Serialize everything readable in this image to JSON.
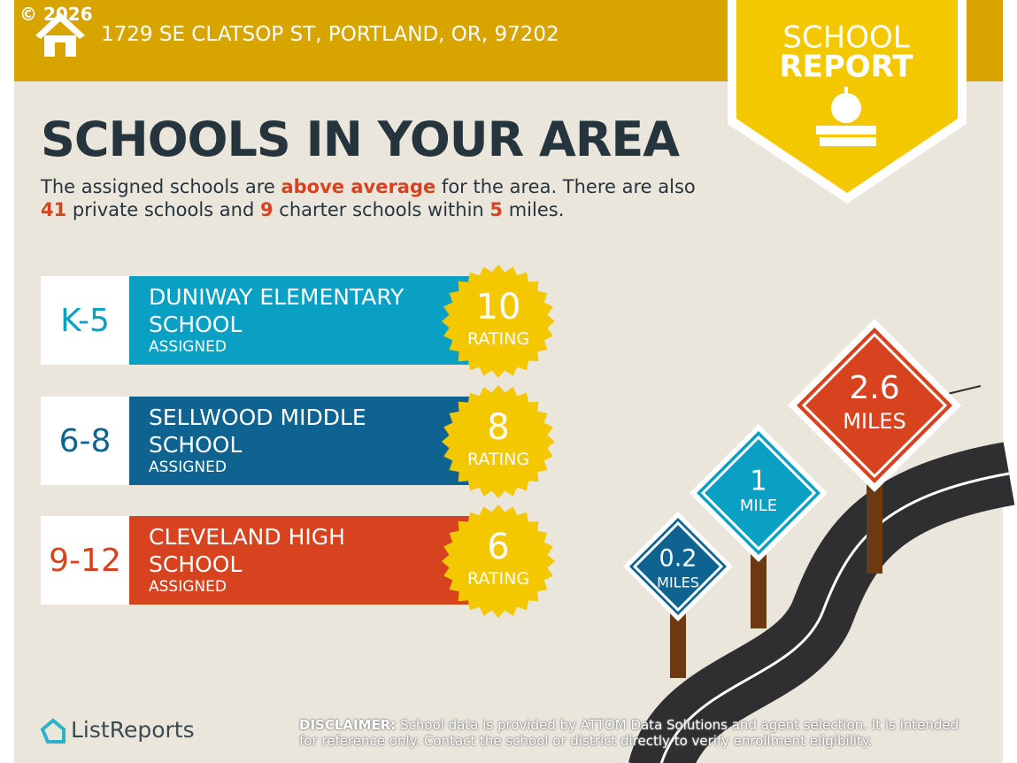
{
  "header": {
    "copyright": "© 2026",
    "address": "1729 SE CLATSOP ST, PORTLAND, OR, 97202"
  },
  "badge": {
    "line1": "SCHOOL",
    "line2": "REPORT"
  },
  "title": "SCHOOLS IN YOUR AREA",
  "intro": [
    "The assigned schools are ",
    "above average",
    " for the area. There are also ",
    "41",
    " private schools and ",
    "9",
    " charter schools within ",
    "5",
    " miles."
  ],
  "schools": [
    {
      "level": "K-5",
      "name": "DUNIWAY ELEMENTARY SCHOOL",
      "status": "ASSIGNED",
      "rating": 10,
      "rating_label": "RATING"
    },
    {
      "level": "6-8",
      "name": "SELLWOOD MIDDLE SCHOOL",
      "status": "ASSIGNED",
      "rating": 8,
      "rating_label": "RATING"
    },
    {
      "level": "9-12",
      "name": "CLEVELAND HIGH SCHOOL",
      "status": "ASSIGNED",
      "rating": 6,
      "rating_label": "RATING"
    }
  ],
  "signs": [
    {
      "distance": "0.2",
      "unit": "MILES"
    },
    {
      "distance": "1",
      "unit": "MILE"
    },
    {
      "distance": "2.6",
      "unit": "MILES"
    }
  ],
  "footer": {
    "brand": "ListReports",
    "disclaimer_label": "DISCLAIMER:",
    "disclaimer": "School data is provided by ATTOM Data Solutions and agent selection. It is intended for reference only. Contact the school or district directly to verify enrollment eligibility."
  }
}
